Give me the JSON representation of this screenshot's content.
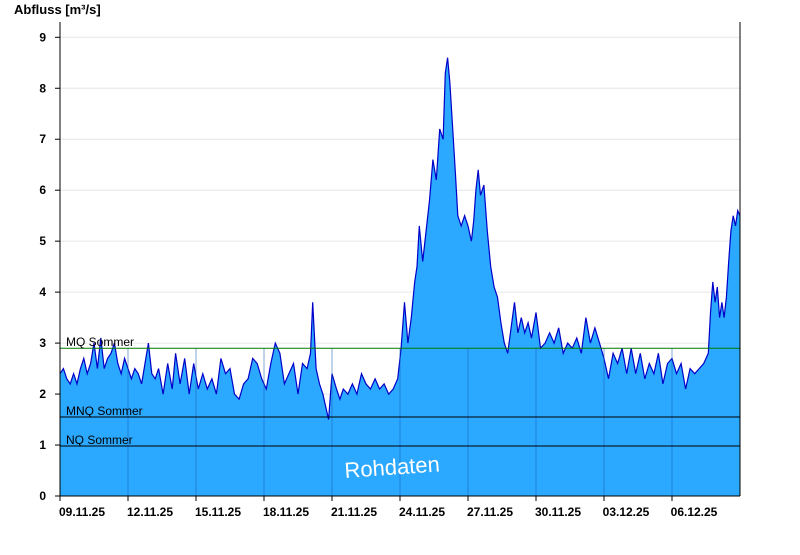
{
  "chart_data": {
    "type": "area",
    "ylabel": "Abfluss [m³/s]",
    "ylim": [
      0,
      9.3
    ],
    "yticks": [
      0,
      1,
      2,
      3,
      4,
      5,
      6,
      7,
      8,
      9
    ],
    "grid": true,
    "x_unit": "day",
    "xlim": [
      0,
      30
    ],
    "xticks": [
      {
        "day": 0,
        "label": "09.11.25"
      },
      {
        "day": 3,
        "label": "12.11.25"
      },
      {
        "day": 6,
        "label": "15.11.25"
      },
      {
        "day": 9,
        "label": "18.11.25"
      },
      {
        "day": 12,
        "label": "21.11.25"
      },
      {
        "day": 15,
        "label": "24.11.25"
      },
      {
        "day": 18,
        "label": "27.11.25"
      },
      {
        "day": 21,
        "label": "30.11.25"
      },
      {
        "day": 24,
        "label": "03.12.25"
      },
      {
        "day": 27,
        "label": "06.12.25"
      }
    ],
    "series": [
      {
        "fill_color": "#2ba8ff",
        "line_color": "#0000c8",
        "points": [
          [
            0.0,
            2.4
          ],
          [
            0.15,
            2.5
          ],
          [
            0.3,
            2.3
          ],
          [
            0.45,
            2.2
          ],
          [
            0.6,
            2.4
          ],
          [
            0.75,
            2.2
          ],
          [
            0.9,
            2.5
          ],
          [
            1.05,
            2.7
          ],
          [
            1.2,
            2.4
          ],
          [
            1.35,
            2.6
          ],
          [
            1.5,
            3.0
          ],
          [
            1.65,
            2.5
          ],
          [
            1.8,
            3.1
          ],
          [
            1.95,
            2.5
          ],
          [
            2.1,
            2.7
          ],
          [
            2.25,
            2.8
          ],
          [
            2.4,
            3.0
          ],
          [
            2.55,
            2.6
          ],
          [
            2.7,
            2.4
          ],
          [
            2.85,
            2.7
          ],
          [
            3.0,
            2.5
          ],
          [
            3.15,
            2.3
          ],
          [
            3.3,
            2.5
          ],
          [
            3.45,
            2.4
          ],
          [
            3.6,
            2.2
          ],
          [
            3.75,
            2.6
          ],
          [
            3.9,
            3.0
          ],
          [
            4.05,
            2.4
          ],
          [
            4.2,
            2.3
          ],
          [
            4.35,
            2.5
          ],
          [
            4.55,
            2.0
          ],
          [
            4.75,
            2.6
          ],
          [
            4.95,
            2.1
          ],
          [
            5.1,
            2.8
          ],
          [
            5.3,
            2.2
          ],
          [
            5.5,
            2.7
          ],
          [
            5.7,
            2.0
          ],
          [
            5.9,
            2.6
          ],
          [
            6.1,
            2.1
          ],
          [
            6.3,
            2.4
          ],
          [
            6.5,
            2.1
          ],
          [
            6.7,
            2.3
          ],
          [
            6.9,
            2.0
          ],
          [
            7.1,
            2.7
          ],
          [
            7.3,
            2.4
          ],
          [
            7.5,
            2.5
          ],
          [
            7.7,
            2.0
          ],
          [
            7.9,
            1.9
          ],
          [
            8.1,
            2.2
          ],
          [
            8.3,
            2.3
          ],
          [
            8.5,
            2.7
          ],
          [
            8.7,
            2.6
          ],
          [
            8.9,
            2.3
          ],
          [
            9.1,
            2.1
          ],
          [
            9.3,
            2.6
          ],
          [
            9.5,
            3.0
          ],
          [
            9.7,
            2.8
          ],
          [
            9.9,
            2.2
          ],
          [
            10.1,
            2.4
          ],
          [
            10.3,
            2.6
          ],
          [
            10.5,
            2.0
          ],
          [
            10.7,
            2.6
          ],
          [
            10.9,
            2.5
          ],
          [
            11.05,
            2.8
          ],
          [
            11.15,
            3.8
          ],
          [
            11.3,
            2.5
          ],
          [
            11.45,
            2.2
          ],
          [
            11.6,
            2.0
          ],
          [
            11.75,
            1.7
          ],
          [
            11.85,
            1.5
          ],
          [
            12.0,
            2.4
          ],
          [
            12.2,
            2.1
          ],
          [
            12.35,
            1.9
          ],
          [
            12.5,
            2.1
          ],
          [
            12.7,
            2.0
          ],
          [
            12.9,
            2.2
          ],
          [
            13.1,
            2.0
          ],
          [
            13.3,
            2.4
          ],
          [
            13.5,
            2.2
          ],
          [
            13.7,
            2.1
          ],
          [
            13.9,
            2.3
          ],
          [
            14.1,
            2.1
          ],
          [
            14.3,
            2.2
          ],
          [
            14.5,
            2.0
          ],
          [
            14.7,
            2.1
          ],
          [
            14.9,
            2.3
          ],
          [
            15.05,
            2.9
          ],
          [
            15.2,
            3.8
          ],
          [
            15.35,
            3.0
          ],
          [
            15.5,
            3.5
          ],
          [
            15.65,
            4.2
          ],
          [
            15.75,
            4.5
          ],
          [
            15.85,
            5.3
          ],
          [
            16.0,
            4.6
          ],
          [
            16.15,
            5.2
          ],
          [
            16.3,
            5.8
          ],
          [
            16.45,
            6.6
          ],
          [
            16.6,
            6.2
          ],
          [
            16.75,
            7.2
          ],
          [
            16.9,
            7.0
          ],
          [
            17.0,
            8.3
          ],
          [
            17.1,
            8.6
          ],
          [
            17.2,
            8.1
          ],
          [
            17.3,
            7.4
          ],
          [
            17.45,
            6.3
          ],
          [
            17.55,
            5.5
          ],
          [
            17.7,
            5.3
          ],
          [
            17.85,
            5.5
          ],
          [
            18.0,
            5.3
          ],
          [
            18.15,
            5.0
          ],
          [
            18.25,
            5.4
          ],
          [
            18.35,
            6.0
          ],
          [
            18.45,
            6.4
          ],
          [
            18.55,
            5.9
          ],
          [
            18.7,
            6.1
          ],
          [
            18.85,
            5.2
          ],
          [
            19.0,
            4.5
          ],
          [
            19.15,
            4.1
          ],
          [
            19.3,
            3.9
          ],
          [
            19.45,
            3.4
          ],
          [
            19.6,
            3.0
          ],
          [
            19.75,
            2.8
          ],
          [
            19.9,
            3.3
          ],
          [
            20.05,
            3.8
          ],
          [
            20.2,
            3.2
          ],
          [
            20.35,
            3.5
          ],
          [
            20.5,
            3.2
          ],
          [
            20.65,
            3.4
          ],
          [
            20.8,
            3.1
          ],
          [
            21.0,
            3.6
          ],
          [
            21.2,
            2.9
          ],
          [
            21.4,
            3.0
          ],
          [
            21.6,
            3.2
          ],
          [
            21.8,
            3.0
          ],
          [
            22.0,
            3.3
          ],
          [
            22.2,
            2.8
          ],
          [
            22.4,
            3.0
          ],
          [
            22.6,
            2.9
          ],
          [
            22.8,
            3.1
          ],
          [
            23.0,
            2.8
          ],
          [
            23.2,
            3.5
          ],
          [
            23.4,
            3.0
          ],
          [
            23.6,
            3.3
          ],
          [
            23.8,
            3.0
          ],
          [
            24.0,
            2.7
          ],
          [
            24.2,
            2.3
          ],
          [
            24.4,
            2.8
          ],
          [
            24.6,
            2.6
          ],
          [
            24.8,
            2.9
          ],
          [
            25.0,
            2.4
          ],
          [
            25.2,
            2.9
          ],
          [
            25.4,
            2.4
          ],
          [
            25.6,
            2.8
          ],
          [
            25.8,
            2.3
          ],
          [
            26.0,
            2.6
          ],
          [
            26.2,
            2.4
          ],
          [
            26.4,
            2.8
          ],
          [
            26.6,
            2.2
          ],
          [
            26.8,
            2.6
          ],
          [
            27.0,
            2.7
          ],
          [
            27.2,
            2.4
          ],
          [
            27.4,
            2.6
          ],
          [
            27.6,
            2.1
          ],
          [
            27.8,
            2.5
          ],
          [
            28.0,
            2.4
          ],
          [
            28.2,
            2.5
          ],
          [
            28.4,
            2.6
          ],
          [
            28.6,
            2.8
          ],
          [
            28.7,
            3.6
          ],
          [
            28.8,
            4.2
          ],
          [
            28.9,
            3.8
          ],
          [
            29.0,
            4.1
          ],
          [
            29.1,
            3.5
          ],
          [
            29.2,
            3.8
          ],
          [
            29.3,
            3.5
          ],
          [
            29.4,
            3.9
          ],
          [
            29.5,
            4.6
          ],
          [
            29.6,
            5.2
          ],
          [
            29.7,
            5.5
          ],
          [
            29.8,
            5.3
          ],
          [
            29.9,
            5.6
          ],
          [
            30.0,
            5.5
          ]
        ]
      }
    ],
    "reference_lines": [
      {
        "label": "MQ Sommer",
        "value": 2.9,
        "color": "#007a00"
      },
      {
        "label": "MNQ Sommer",
        "value": 1.55,
        "color": "#000000"
      },
      {
        "label": "NQ Sommer",
        "value": 0.98,
        "color": "#000000"
      }
    ],
    "watermark": "Rohdaten"
  }
}
